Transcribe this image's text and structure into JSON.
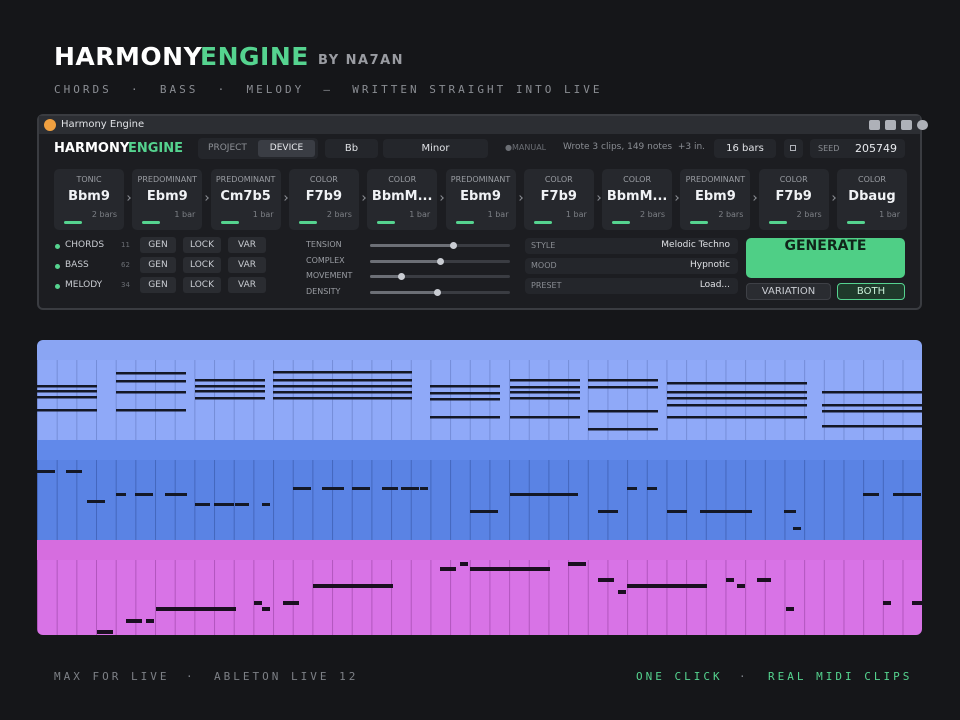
{
  "header": {
    "title_a": "HARMONY",
    "title_b": "ENGINE",
    "byline": "BY NA7AN",
    "tagline": "CHORDS  ·  BASS  ·  MELODY  —  WRITTEN STRAIGHT INTO LIVE"
  },
  "window": {
    "title": "Harmony Engine"
  },
  "device": {
    "name_a": "HARMONY",
    "name_b": "ENGINE",
    "tabs": [
      "PROJECT",
      "DEVICE"
    ],
    "key": "Bb",
    "scale": "Minor",
    "mode": "●MANUAL",
    "status": "Wrote 3 clips, 149 notes  +3 in...",
    "length": "16 bars",
    "seed_label": "SEED",
    "seed": "205749"
  },
  "cards": [
    {
      "role": "TONIC",
      "chord": "Bbm9",
      "bars": "2 bars"
    },
    {
      "role": "PREDOMINANT",
      "chord": "Ebm9",
      "bars": "1 bar"
    },
    {
      "role": "PREDOMINANT",
      "chord": "Cm7b5",
      "bars": "1 bar"
    },
    {
      "role": "COLOR",
      "chord": "F7b9",
      "bars": "2 bars"
    },
    {
      "role": "COLOR",
      "chord": "BbmM...",
      "bars": "1 bar"
    },
    {
      "role": "PREDOMINANT",
      "chord": "Ebm9",
      "bars": "1 bar"
    },
    {
      "role": "COLOR",
      "chord": "F7b9",
      "bars": "1 bar"
    },
    {
      "role": "COLOR",
      "chord": "BbmM...",
      "bars": "2 bars"
    },
    {
      "role": "PREDOMINANT",
      "chord": "Ebm9",
      "bars": "2 bars"
    },
    {
      "role": "COLOR",
      "chord": "F7b9",
      "bars": "2 bars"
    },
    {
      "role": "COLOR",
      "chord": "Dbaug",
      "bars": "1 bar"
    }
  ],
  "tracks": [
    {
      "name": "CHORDS",
      "count": 11,
      "buttons": [
        "GEN",
        "LOCK",
        "VAR"
      ]
    },
    {
      "name": "BASS",
      "count": 62,
      "buttons": [
        "GEN",
        "LOCK",
        "VAR"
      ]
    },
    {
      "name": "MELODY",
      "count": 34,
      "buttons": [
        "GEN",
        "LOCK",
        "VAR"
      ]
    }
  ],
  "sliders": [
    {
      "label": "TENSION",
      "value": 0.59
    },
    {
      "label": "COMPLEX",
      "value": 0.5
    },
    {
      "label": "MOVEMENT",
      "value": 0.22
    },
    {
      "label": "DENSITY",
      "value": 0.48
    }
  ],
  "options": [
    {
      "label": "STYLE",
      "value": "Melodic Techno"
    },
    {
      "label": "MOOD",
      "value": "Hypnotic"
    },
    {
      "label": "PRESET",
      "value": "Load..."
    }
  ],
  "actions": {
    "generate": "GENERATE",
    "variation": "VARIATION",
    "both": "BOTH"
  },
  "footer": {
    "left": [
      "MAX FOR LIVE",
      "·",
      "ABLETON LIVE 12"
    ],
    "right": [
      "ONE CLICK",
      "·",
      "REAL MIDI CLIPS"
    ]
  }
}
